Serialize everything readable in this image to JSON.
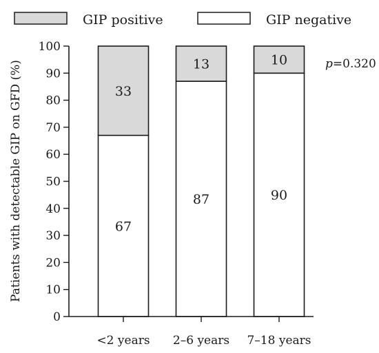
{
  "chart_data": {
    "type": "bar",
    "stacked": true,
    "percent": true,
    "categories": [
      "<2 years",
      "2–6 years",
      "7–18 years"
    ],
    "series": [
      {
        "name": "GIP negative",
        "values": [
          67,
          87,
          90
        ],
        "color": "#ffffff"
      },
      {
        "name": "GIP positive",
        "values": [
          33,
          13,
          10
        ],
        "color": "#d9d9d9"
      }
    ],
    "title": "",
    "xlabel": "",
    "ylabel": "Patients with detectable GIP on GFD (%)",
    "ylim": [
      0,
      100
    ],
    "yticks": [
      0,
      10,
      20,
      30,
      40,
      50,
      60,
      70,
      80,
      90,
      100
    ],
    "legend": [
      "GIP positive",
      "GIP negative"
    ],
    "legend_position": "top",
    "annotation": {
      "prefix": "p",
      "value": "=0.320"
    },
    "grid": false
  }
}
